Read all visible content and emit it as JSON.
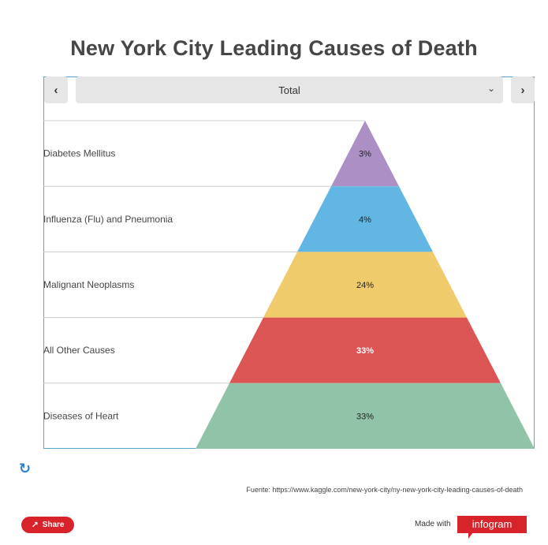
{
  "title": "New York City Leading Causes of Death",
  "controls": {
    "prev_icon": "‹",
    "next_icon": "›",
    "dropdown_value": "Total",
    "dropdown_icon": "chevron-down-icon"
  },
  "chart_data": {
    "type": "pyramid",
    "title": "New York City Leading Causes of Death",
    "segments": [
      {
        "label": "Diabetes Mellitus",
        "value_label": "3%",
        "value": 3,
        "color": "#ab8fc5"
      },
      {
        "label": "Influenza (Flu) and Pneumonia",
        "value_label": "4%",
        "value": 4,
        "color": "#62b6e3"
      },
      {
        "label": "Malignant Neoplasms",
        "value_label": "24%",
        "value": 24,
        "color": "#efcb6c"
      },
      {
        "label": "All Other Causes",
        "value_label": "33%",
        "value": 33,
        "color": "#dc5555"
      },
      {
        "label": "Diseases of Heart",
        "value_label": "33%",
        "value": 33,
        "color": "#91c3a8"
      }
    ]
  },
  "footer": {
    "source": "Fuente: https://www.kaggle.com/new-york-city/ny-new-york-city-leading-causes-of-death",
    "share_label": "Share",
    "made_with": "Made with",
    "brand": "infogram"
  },
  "colors": {
    "accent": "#d8232a",
    "frame_border": "#5aa3d6"
  }
}
